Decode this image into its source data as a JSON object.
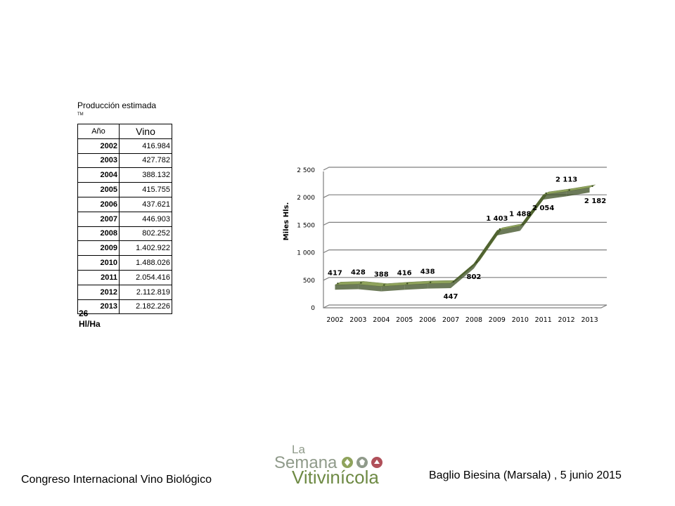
{
  "heading": "Producción estimada",
  "tm": "TM",
  "table": {
    "headers": [
      "Año",
      "Vino"
    ],
    "rows": [
      [
        "2002",
        "416.984"
      ],
      [
        "2003",
        "427.782"
      ],
      [
        "2004",
        "388.132"
      ],
      [
        "2005",
        "415.755"
      ],
      [
        "2006",
        "437.621"
      ],
      [
        "2007",
        "446.903"
      ],
      [
        "2008",
        "802.252"
      ],
      [
        "2009",
        "1.402.922"
      ],
      [
        "2010",
        "1.488.026"
      ],
      [
        "2011",
        "2.054.416"
      ],
      [
        "2012",
        "2.112.819"
      ],
      [
        "2013",
        "2.182.226"
      ]
    ]
  },
  "yield_value": "26",
  "yield_unit": "Hl/Ha",
  "chart_data": {
    "type": "line",
    "ylabel": "Miles Hls.",
    "categories": [
      "2002",
      "2003",
      "2004",
      "2005",
      "2006",
      "2007",
      "2008",
      "2009",
      "2010",
      "2011",
      "2012",
      "2013"
    ],
    "values": [
      417,
      428,
      388,
      416,
      438,
      447,
      802,
      1403,
      1488,
      2054,
      2113,
      2182
    ],
    "data_labels": [
      "417",
      "428",
      "388",
      "416",
      "438",
      "447",
      "802",
      "1 403",
      "1 488",
      "2 054",
      "2 113",
      "2 182"
    ],
    "ylim": [
      0,
      2500
    ],
    "yticks": [
      "0",
      "500",
      "1 000",
      "1 500",
      "2 000",
      "2 500"
    ],
    "grid": true,
    "colors": {
      "ribbon": "#8fa35c",
      "ribbon_dark": "#3b4d22",
      "grid": "#7f7f7f"
    }
  },
  "footer": {
    "left": "Congreso Internacional Vino Biológico",
    "right": "Baglio Biesina (Marsala) ,  5 junio 2015"
  },
  "logo": {
    "la": "La",
    "semana": "Semana",
    "vitivinicola": "Vitivinícola"
  }
}
